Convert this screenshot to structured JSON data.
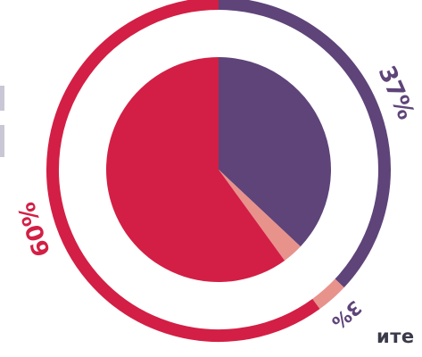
{
  "page": {
    "clipped_text": "ите"
  },
  "colors": {
    "purple": "#5e4479",
    "salmon": "#e8928c",
    "crimson": "#d31f45",
    "label_purple": "#5e4479",
    "label_crimson": "#d31f45",
    "side_bar": "#c9c7d6",
    "text_dark": "#3a3a4a"
  },
  "chart_data": {
    "type": "pie",
    "title": "",
    "slices": [
      {
        "label": "37%",
        "value": 37,
        "color": "#5e4479"
      },
      {
        "label": "3%",
        "value": 3,
        "color": "#e8928c"
      },
      {
        "label": "60%",
        "value": 60,
        "color": "#d31f45"
      }
    ],
    "style": "pie inside a matching outer ring",
    "start_angle_deg": 0,
    "direction": "clockwise",
    "legend": "none",
    "label_placement": "outside-ring"
  }
}
